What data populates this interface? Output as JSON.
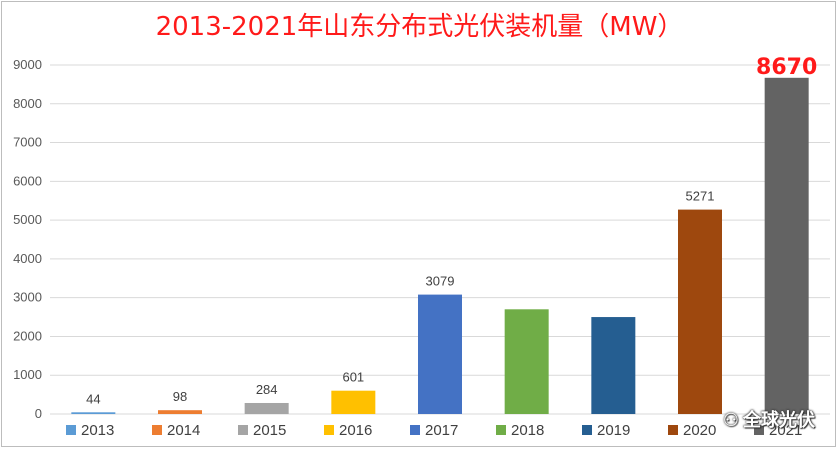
{
  "chart_data": {
    "type": "bar",
    "title": "2013-2021年山东分布式光伏装机量（MW）",
    "categories": [
      "2013",
      "2014",
      "2015",
      "2016",
      "2017",
      "2018",
      "2019",
      "2020",
      "2021"
    ],
    "values": [
      44,
      98,
      284,
      601,
      3079,
      2700,
      2500,
      5271,
      8670
    ],
    "data_labels": [
      "44",
      "98",
      "284",
      "601",
      "3079",
      "",
      "",
      "5271",
      "8670"
    ],
    "highlight_label_index": 8,
    "colors": [
      "#5b9bd5",
      "#ed7d31",
      "#a5a5a5",
      "#ffc000",
      "#4472c4",
      "#70ad47",
      "#255e91",
      "#9e480e",
      "#636363"
    ],
    "ylim": [
      0,
      9000
    ],
    "yticks": [
      0,
      1000,
      2000,
      3000,
      4000,
      5000,
      6000,
      7000,
      8000,
      9000
    ],
    "grid": true,
    "legend_position": "bottom",
    "xlabel": "",
    "ylabel": ""
  },
  "watermark": {
    "icon": "wechat-icon",
    "text": "全球光伏"
  }
}
